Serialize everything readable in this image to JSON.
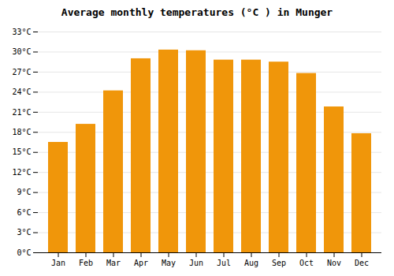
{
  "chart_data": {
    "type": "bar",
    "title": "Average monthly temperatures (°C ) in Munger",
    "categories": [
      "Jan",
      "Feb",
      "Mar",
      "Apr",
      "May",
      "Jun",
      "Jul",
      "Aug",
      "Sep",
      "Oct",
      "Nov",
      "Dec"
    ],
    "values": [
      16.5,
      19.2,
      24.2,
      29.0,
      30.3,
      30.2,
      28.8,
      28.8,
      28.5,
      26.8,
      21.8,
      17.8
    ],
    "color": "#F0960A",
    "ylim": [
      0,
      33
    ],
    "yticks": [
      {
        "value": 0,
        "label": "0°C"
      },
      {
        "value": 3,
        "label": "3°C"
      },
      {
        "value": 6,
        "label": "6°C"
      },
      {
        "value": 9,
        "label": "9°C"
      },
      {
        "value": 12,
        "label": "12°C"
      },
      {
        "value": 15,
        "label": "15°C"
      },
      {
        "value": 18,
        "label": "18°C"
      },
      {
        "value": 21,
        "label": "21°C"
      },
      {
        "value": 24,
        "label": "24°C"
      },
      {
        "value": 27,
        "label": "27°C"
      },
      {
        "value": 30,
        "label": "30°C"
      },
      {
        "value": 33,
        "label": "33°C"
      }
    ],
    "grid": true
  }
}
